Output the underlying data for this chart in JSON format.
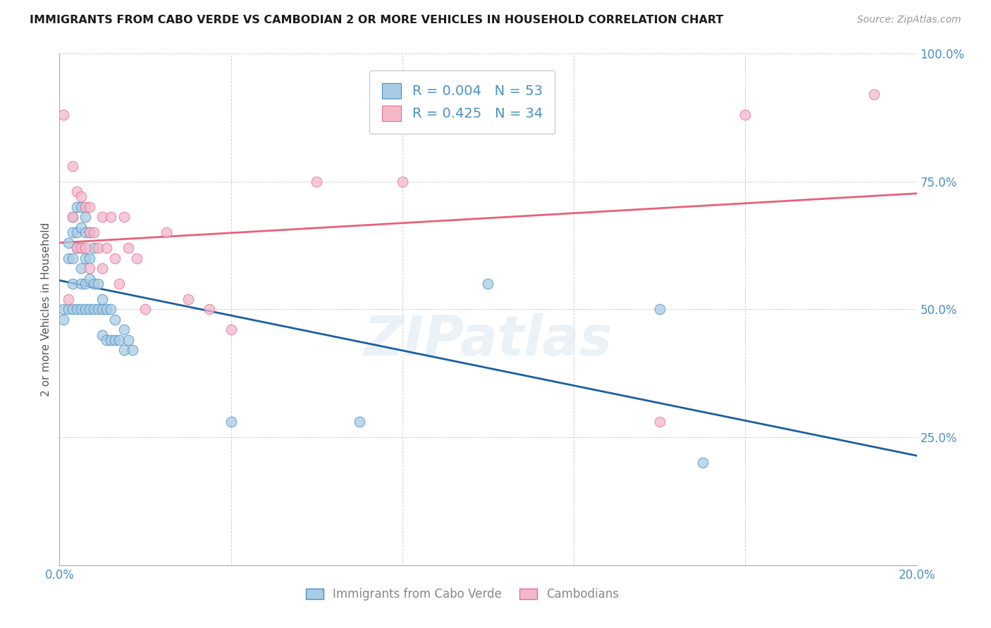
{
  "title": "IMMIGRANTS FROM CABO VERDE VS CAMBODIAN 2 OR MORE VEHICLES IN HOUSEHOLD CORRELATION CHART",
  "source": "Source: ZipAtlas.com",
  "ylabel": "2 or more Vehicles in Household",
  "xmin": 0.0,
  "xmax": 0.2,
  "ymin": 0.0,
  "ymax": 1.0,
  "xticks": [
    0.0,
    0.04,
    0.08,
    0.12,
    0.16,
    0.2
  ],
  "xtick_labels": [
    "0.0%",
    "",
    "",
    "",
    "",
    "20.0%"
  ],
  "yticks": [
    0.0,
    0.25,
    0.5,
    0.75,
    1.0
  ],
  "ytick_labels": [
    "",
    "25.0%",
    "50.0%",
    "75.0%",
    "100.0%"
  ],
  "legend_r_blue": "0.004",
  "legend_n_blue": "53",
  "legend_r_pink": "0.425",
  "legend_n_pink": "34",
  "blue_fill": "#a8cce4",
  "pink_fill": "#f5b8cb",
  "blue_edge": "#4a90c4",
  "pink_edge": "#e07090",
  "blue_line": "#1a5fa0",
  "pink_line": "#e8607a",
  "tick_color": "#4a90c4",
  "watermark": "ZIPatlas",
  "legend1": "Immigrants from Cabo Verde",
  "legend2": "Cambodians",
  "cabo_x": [
    0.001,
    0.001,
    0.002,
    0.002,
    0.002,
    0.003,
    0.003,
    0.003,
    0.003,
    0.003,
    0.004,
    0.004,
    0.004,
    0.004,
    0.005,
    0.005,
    0.005,
    0.005,
    0.005,
    0.005,
    0.006,
    0.006,
    0.006,
    0.006,
    0.006,
    0.007,
    0.007,
    0.007,
    0.007,
    0.008,
    0.008,
    0.008,
    0.009,
    0.009,
    0.01,
    0.01,
    0.01,
    0.011,
    0.011,
    0.012,
    0.012,
    0.013,
    0.013,
    0.014,
    0.015,
    0.015,
    0.016,
    0.017,
    0.04,
    0.07,
    0.1,
    0.14,
    0.15
  ],
  "cabo_y": [
    0.5,
    0.48,
    0.63,
    0.6,
    0.5,
    0.68,
    0.65,
    0.6,
    0.55,
    0.5,
    0.7,
    0.65,
    0.62,
    0.5,
    0.7,
    0.66,
    0.62,
    0.58,
    0.55,
    0.5,
    0.68,
    0.65,
    0.6,
    0.55,
    0.5,
    0.65,
    0.6,
    0.56,
    0.5,
    0.62,
    0.55,
    0.5,
    0.55,
    0.5,
    0.52,
    0.5,
    0.45,
    0.5,
    0.44,
    0.5,
    0.44,
    0.48,
    0.44,
    0.44,
    0.46,
    0.42,
    0.44,
    0.42,
    0.28,
    0.28,
    0.55,
    0.5,
    0.2
  ],
  "camb_x": [
    0.001,
    0.002,
    0.003,
    0.003,
    0.004,
    0.004,
    0.005,
    0.005,
    0.006,
    0.006,
    0.007,
    0.007,
    0.007,
    0.008,
    0.009,
    0.01,
    0.01,
    0.011,
    0.012,
    0.013,
    0.014,
    0.015,
    0.016,
    0.018,
    0.02,
    0.025,
    0.03,
    0.035,
    0.04,
    0.06,
    0.08,
    0.14,
    0.16,
    0.19
  ],
  "camb_y": [
    0.88,
    0.52,
    0.78,
    0.68,
    0.73,
    0.62,
    0.72,
    0.62,
    0.7,
    0.62,
    0.7,
    0.65,
    0.58,
    0.65,
    0.62,
    0.68,
    0.58,
    0.62,
    0.68,
    0.6,
    0.55,
    0.68,
    0.62,
    0.6,
    0.5,
    0.65,
    0.52,
    0.5,
    0.46,
    0.75,
    0.75,
    0.28,
    0.88,
    0.92
  ]
}
